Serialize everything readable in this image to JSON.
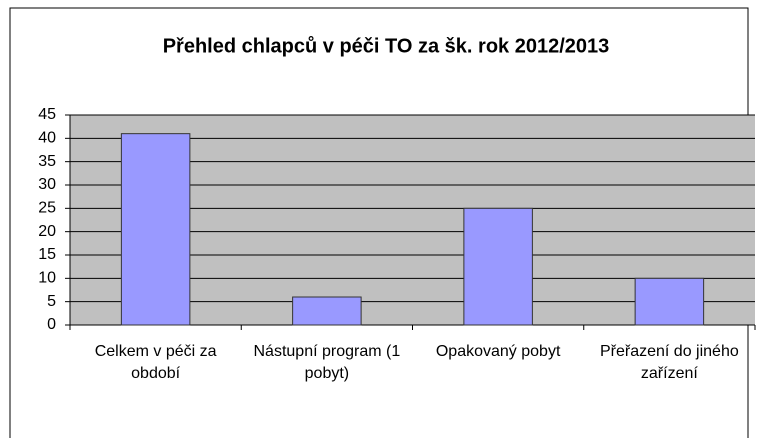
{
  "chart_data": {
    "type": "bar",
    "title": "Přehled chlapců v péči TO za šk. rok 2012/2013",
    "categories": [
      "Celkem v péči za období",
      "Nástupní program (1 pobyt)",
      "Opakovaný pobyt",
      "Přeřazení do jiného zařízení"
    ],
    "values": [
      41,
      6,
      25,
      10
    ],
    "color": "#9999ff",
    "ylim": [
      0,
      45
    ],
    "yticks": [
      0,
      5,
      10,
      15,
      20,
      25,
      30,
      35,
      40,
      45
    ],
    "grid": true
  }
}
